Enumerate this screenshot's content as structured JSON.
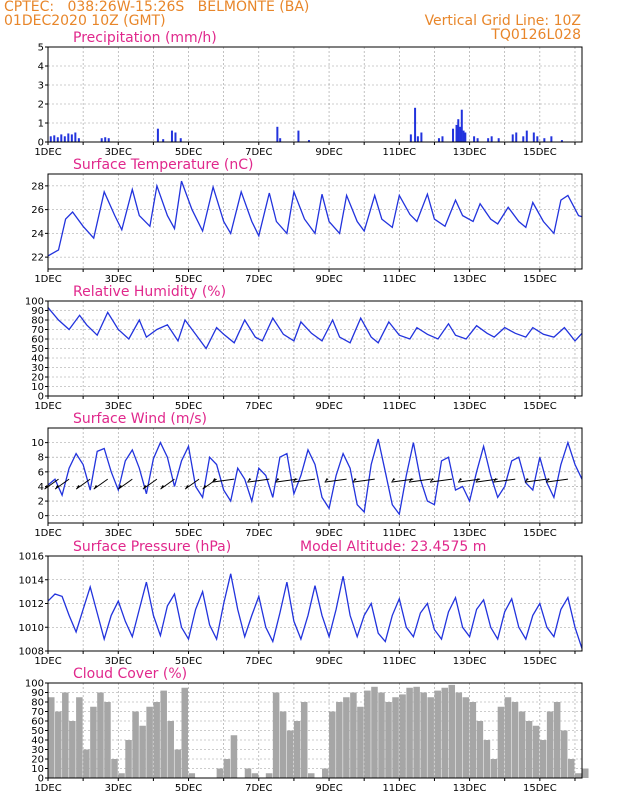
{
  "header": {
    "line1_left": "CPTEC:   038:26W-15:26S   BELMONTE (BA)",
    "line2_left": "01DEC2020 10Z (GMT)",
    "line2_right": "Vertical Grid Line: 10Z",
    "line3_right": "TQ0126L028"
  },
  "colors": {
    "header": "#e8862a",
    "title": "#e0288c",
    "line": "#2233dd",
    "bar": "#2233dd",
    "cloud": "#a6a6a6",
    "wind_arrow": "#000000"
  },
  "chart_data": [
    {
      "type": "bar",
      "title": "Precipitation (mm/h)",
      "xtick_labels": [
        "1DEC",
        "3DEC",
        "5DEC",
        "7DEC",
        "9DEC",
        "11DEC",
        "13DEC",
        "15DEC"
      ],
      "xlim_days": [
        1,
        16.2
      ],
      "ylim": [
        0,
        5
      ],
      "yticks": [
        0,
        1,
        2,
        3,
        4,
        5
      ],
      "grid": true,
      "series": [
        {
          "x": [
            1.05,
            1.15,
            1.25,
            1.35,
            1.45,
            1.55,
            1.65,
            1.75,
            1.85,
            2.5,
            2.6,
            2.7,
            4.1,
            4.25,
            4.5,
            4.6,
            4.75,
            7.5,
            7.58,
            8.1,
            8.4,
            11.3,
            11.42,
            11.5,
            11.6,
            12.1,
            12.2,
            12.5,
            12.6,
            12.65,
            12.7,
            12.75,
            12.8,
            12.85,
            13.1,
            13.2,
            13.5,
            13.6,
            13.8,
            14.2,
            14.3,
            14.5,
            14.6,
            14.8,
            14.9,
            15.1,
            15.3,
            15.6
          ],
          "values": [
            0.3,
            0.35,
            0.25,
            0.4,
            0.3,
            0.45,
            0.4,
            0.5,
            0.2,
            0.2,
            0.25,
            0.2,
            0.7,
            0.15,
            0.6,
            0.5,
            0.2,
            0.8,
            0.2,
            0.6,
            0.1,
            0.4,
            1.8,
            0.3,
            0.5,
            0.2,
            0.3,
            0.7,
            0.9,
            1.2,
            0.8,
            1.7,
            0.6,
            0.5,
            0.3,
            0.2,
            0.2,
            0.3,
            0.2,
            0.4,
            0.5,
            0.3,
            0.6,
            0.5,
            0.3,
            0.2,
            0.3,
            0.1
          ]
        }
      ]
    },
    {
      "type": "line",
      "title": "Surface Temperature (nC)",
      "xtick_labels": [
        "1DEC",
        "3DEC",
        "5DEC",
        "7DEC",
        "9DEC",
        "11DEC",
        "13DEC",
        "15DEC"
      ],
      "xlim_days": [
        1,
        16.2
      ],
      "ylim": [
        21,
        29
      ],
      "yticks": [
        22,
        24,
        26,
        28
      ],
      "grid": true,
      "series": [
        {
          "x": [
            1.0,
            1.3,
            1.5,
            1.7,
            2.0,
            2.3,
            2.6,
            2.9,
            3.1,
            3.4,
            3.6,
            3.9,
            4.1,
            4.4,
            4.6,
            4.8,
            5.1,
            5.4,
            5.7,
            6.0,
            6.2,
            6.5,
            6.8,
            7.0,
            7.3,
            7.5,
            7.8,
            8.0,
            8.3,
            8.6,
            8.8,
            9.0,
            9.3,
            9.5,
            9.8,
            10.0,
            10.3,
            10.5,
            10.8,
            11.0,
            11.3,
            11.5,
            11.8,
            12.0,
            12.3,
            12.6,
            12.8,
            13.1,
            13.3,
            13.6,
            13.8,
            14.1,
            14.4,
            14.6,
            14.8,
            15.1,
            15.4,
            15.6,
            15.8,
            16.1,
            16.2
          ],
          "values": [
            22.1,
            22.6,
            25.2,
            25.8,
            24.6,
            23.6,
            27.5,
            25.5,
            24.3,
            27.7,
            25.5,
            24.6,
            28.0,
            25.5,
            24.4,
            28.4,
            26.0,
            24.2,
            27.9,
            25.0,
            24.0,
            27.5,
            25.0,
            23.8,
            27.4,
            25.0,
            24.0,
            27.5,
            25.2,
            24.0,
            27.3,
            25.0,
            24.0,
            27.2,
            25.0,
            24.2,
            27.2,
            25.2,
            24.5,
            27.2,
            25.6,
            25.0,
            27.3,
            25.2,
            24.6,
            26.8,
            25.5,
            25.0,
            26.5,
            25.2,
            24.8,
            26.2,
            25.0,
            24.5,
            26.6,
            25.0,
            24.0,
            26.8,
            27.2,
            25.5,
            25.4
          ]
        }
      ]
    },
    {
      "type": "line",
      "title": "Relative Humidity (%)",
      "xtick_labels": [
        "1DEC",
        "3DEC",
        "5DEC",
        "7DEC",
        "9DEC",
        "11DEC",
        "13DEC",
        "15DEC"
      ],
      "xlim_days": [
        1,
        16.2
      ],
      "ylim": [
        0,
        100
      ],
      "yticks": [
        0,
        10,
        20,
        30,
        40,
        50,
        60,
        70,
        80,
        90,
        100
      ],
      "grid": true,
      "series": [
        {
          "x": [
            1.0,
            1.3,
            1.6,
            1.9,
            2.1,
            2.4,
            2.7,
            3.0,
            3.3,
            3.6,
            3.8,
            4.1,
            4.4,
            4.7,
            4.9,
            5.2,
            5.5,
            5.8,
            6.0,
            6.3,
            6.6,
            6.9,
            7.1,
            7.4,
            7.7,
            8.0,
            8.2,
            8.5,
            8.8,
            9.1,
            9.3,
            9.6,
            9.9,
            10.2,
            10.4,
            10.7,
            11.0,
            11.3,
            11.5,
            11.8,
            12.1,
            12.4,
            12.6,
            12.9,
            13.2,
            13.5,
            13.7,
            14.0,
            14.3,
            14.6,
            14.8,
            15.1,
            15.4,
            15.7,
            16.0,
            16.2
          ],
          "values": [
            93,
            80,
            70,
            85,
            75,
            64,
            88,
            70,
            60,
            80,
            62,
            70,
            75,
            58,
            80,
            65,
            50,
            72,
            65,
            56,
            80,
            62,
            58,
            82,
            65,
            58,
            78,
            66,
            58,
            80,
            62,
            56,
            82,
            62,
            56,
            78,
            64,
            60,
            72,
            65,
            60,
            76,
            64,
            60,
            74,
            66,
            62,
            72,
            66,
            62,
            72,
            65,
            62,
            72,
            58,
            66
          ]
        }
      ]
    },
    {
      "type": "line",
      "title": "Surface Wind (m/s)",
      "xtick_labels": [
        "1DEC",
        "3DEC",
        "5DEC",
        "7DEC",
        "9DEC",
        "11DEC",
        "13DEC",
        "15DEC"
      ],
      "xlim_days": [
        1,
        16.2
      ],
      "ylim": [
        -1,
        12
      ],
      "yticks": [
        0,
        2,
        4,
        6,
        8,
        10
      ],
      "grid": true,
      "series": [
        {
          "x": [
            1.0,
            1.2,
            1.4,
            1.6,
            1.8,
            2.0,
            2.2,
            2.4,
            2.6,
            2.8,
            3.0,
            3.2,
            3.4,
            3.6,
            3.8,
            4.0,
            4.2,
            4.4,
            4.6,
            4.8,
            5.0,
            5.2,
            5.4,
            5.6,
            5.8,
            6.0,
            6.2,
            6.4,
            6.6,
            6.8,
            7.0,
            7.2,
            7.4,
            7.6,
            7.8,
            8.0,
            8.2,
            8.4,
            8.6,
            8.8,
            9.0,
            9.2,
            9.4,
            9.6,
            9.8,
            10.0,
            10.2,
            10.4,
            10.6,
            10.8,
            11.0,
            11.2,
            11.4,
            11.6,
            11.8,
            12.0,
            12.2,
            12.4,
            12.6,
            12.8,
            13.0,
            13.2,
            13.4,
            13.6,
            13.8,
            14.0,
            14.2,
            14.4,
            14.6,
            14.8,
            15.0,
            15.2,
            15.4,
            15.6,
            15.8,
            16.0,
            16.2
          ],
          "values": [
            4.2,
            5.0,
            2.8,
            6.5,
            8.5,
            7.0,
            3.5,
            8.8,
            9.2,
            6.0,
            3.5,
            7.5,
            9.0,
            6.5,
            3.0,
            7.8,
            10.0,
            8.0,
            4.0,
            7.5,
            9.5,
            4.0,
            2.5,
            8.0,
            7.0,
            3.5,
            2.0,
            6.5,
            5.0,
            2.0,
            6.5,
            5.5,
            2.5,
            8.0,
            8.5,
            3.0,
            5.5,
            9.0,
            7.0,
            2.5,
            1.0,
            5.5,
            8.5,
            6.5,
            1.5,
            0.5,
            7.0,
            10.5,
            6.0,
            1.5,
            0.2,
            5.5,
            10.0,
            5.0,
            2.0,
            1.5,
            7.5,
            8.0,
            3.5,
            4.0,
            2.0,
            6.0,
            9.5,
            5.5,
            2.5,
            4.0,
            7.5,
            8.0,
            4.5,
            3.5,
            8.0,
            4.5,
            2.5,
            7.0,
            10.0,
            7.0,
            5.0
          ]
        }
      ],
      "wind_arrows_x": [
        1.3,
        1.6,
        2.2,
        2.7,
        3.4,
        4.1,
        4.6,
        5.3,
        5.8,
        6.3,
        7.3,
        8.1,
        8.6,
        9.5,
        10.3,
        11.4,
        11.9,
        12.5,
        13.3,
        13.8,
        14.3,
        15.2,
        15.8
      ]
    },
    {
      "type": "line",
      "title": "Surface Pressure (hPa)",
      "annotation": "Model Altitude: 23.4575 m",
      "xtick_labels": [
        "1DEC",
        "3DEC",
        "5DEC",
        "7DEC",
        "9DEC",
        "11DEC",
        "13DEC",
        "15DEC"
      ],
      "xlim_days": [
        1,
        16.2
      ],
      "ylim": [
        1008,
        1016
      ],
      "yticks": [
        1008,
        1010,
        1012,
        1014,
        1016
      ],
      "grid": true,
      "series": [
        {
          "x": [
            1.0,
            1.2,
            1.4,
            1.6,
            1.8,
            2.0,
            2.2,
            2.4,
            2.6,
            2.8,
            3.0,
            3.2,
            3.4,
            3.6,
            3.8,
            4.0,
            4.2,
            4.4,
            4.6,
            4.8,
            5.0,
            5.2,
            5.4,
            5.6,
            5.8,
            6.0,
            6.2,
            6.4,
            6.6,
            6.8,
            7.0,
            7.2,
            7.4,
            7.6,
            7.8,
            8.0,
            8.2,
            8.4,
            8.6,
            8.8,
            9.0,
            9.2,
            9.4,
            9.6,
            9.8,
            10.0,
            10.2,
            10.4,
            10.6,
            10.8,
            11.0,
            11.2,
            11.4,
            11.6,
            11.8,
            12.0,
            12.2,
            12.4,
            12.6,
            12.8,
            13.0,
            13.2,
            13.4,
            13.6,
            13.8,
            14.0,
            14.2,
            14.4,
            14.6,
            14.8,
            15.0,
            15.2,
            15.4,
            15.6,
            15.8,
            16.0,
            16.2
          ],
          "values": [
            1012.2,
            1012.8,
            1012.6,
            1011.0,
            1009.6,
            1011.5,
            1013.4,
            1011.2,
            1009.0,
            1011.0,
            1012.2,
            1010.5,
            1009.2,
            1011.5,
            1013.8,
            1011.0,
            1009.3,
            1011.8,
            1012.8,
            1010.0,
            1009.0,
            1011.5,
            1013.0,
            1010.2,
            1009.0,
            1012.0,
            1014.5,
            1011.5,
            1009.2,
            1011.0,
            1012.6,
            1010.0,
            1008.8,
            1011.2,
            1013.8,
            1010.5,
            1009.0,
            1011.0,
            1013.5,
            1011.0,
            1009.2,
            1011.5,
            1014.3,
            1011.0,
            1009.2,
            1011.0,
            1012.0,
            1009.5,
            1008.8,
            1011.0,
            1012.4,
            1010.0,
            1009.2,
            1011.2,
            1012.0,
            1009.8,
            1009.0,
            1011.3,
            1012.5,
            1010.0,
            1009.2,
            1011.5,
            1012.3,
            1010.0,
            1009.0,
            1011.3,
            1012.4,
            1010.0,
            1009.0,
            1011.0,
            1012.0,
            1010.0,
            1009.2,
            1011.5,
            1012.5,
            1010.0,
            1008.2
          ]
        }
      ]
    },
    {
      "type": "bar",
      "title": "Cloud Cover (%)",
      "xtick_labels": [
        "1DEC",
        "3DEC",
        "5DEC",
        "7DEC",
        "9DEC",
        "11DEC",
        "13DEC",
        "15DEC"
      ],
      "xlim_days": [
        1,
        16.2
      ],
      "ylim": [
        0,
        100
      ],
      "yticks": [
        0,
        10,
        20,
        30,
        40,
        50,
        60,
        70,
        80,
        90,
        100
      ],
      "grid": true,
      "series": [
        {
          "x": [
            1.0,
            1.2,
            1.4,
            1.6,
            1.8,
            2.0,
            2.2,
            2.4,
            2.6,
            2.8,
            3.0,
            3.2,
            3.4,
            3.6,
            3.8,
            4.0,
            4.2,
            4.4,
            4.6,
            4.8,
            5.0,
            5.2,
            5.4,
            5.6,
            5.8,
            6.0,
            6.2,
            6.4,
            6.6,
            6.8,
            7.0,
            7.2,
            7.4,
            7.6,
            7.8,
            8.0,
            8.2,
            8.4,
            8.6,
            8.8,
            9.0,
            9.2,
            9.4,
            9.6,
            9.8,
            10.0,
            10.2,
            10.4,
            10.6,
            10.8,
            11.0,
            11.2,
            11.4,
            11.6,
            11.8,
            12.0,
            12.2,
            12.4,
            12.6,
            12.8,
            13.0,
            13.2,
            13.4,
            13.6,
            13.8,
            14.0,
            14.2,
            14.4,
            14.6,
            14.8,
            15.0,
            15.2,
            15.4,
            15.6,
            15.8,
            16.0,
            16.2
          ],
          "values": [
            85,
            70,
            90,
            60,
            85,
            30,
            75,
            90,
            80,
            20,
            5,
            40,
            70,
            55,
            75,
            80,
            92,
            60,
            30,
            95,
            5,
            0,
            0,
            0,
            10,
            20,
            45,
            0,
            10,
            5,
            0,
            5,
            90,
            70,
            50,
            60,
            80,
            5,
            0,
            10,
            70,
            80,
            85,
            90,
            75,
            92,
            96,
            90,
            80,
            85,
            88,
            95,
            96,
            90,
            85,
            92,
            95,
            98,
            90,
            85,
            80,
            60,
            40,
            20,
            75,
            85,
            80,
            70,
            60,
            55,
            40,
            70,
            80,
            50,
            20,
            5,
            10
          ]
        }
      ]
    }
  ]
}
